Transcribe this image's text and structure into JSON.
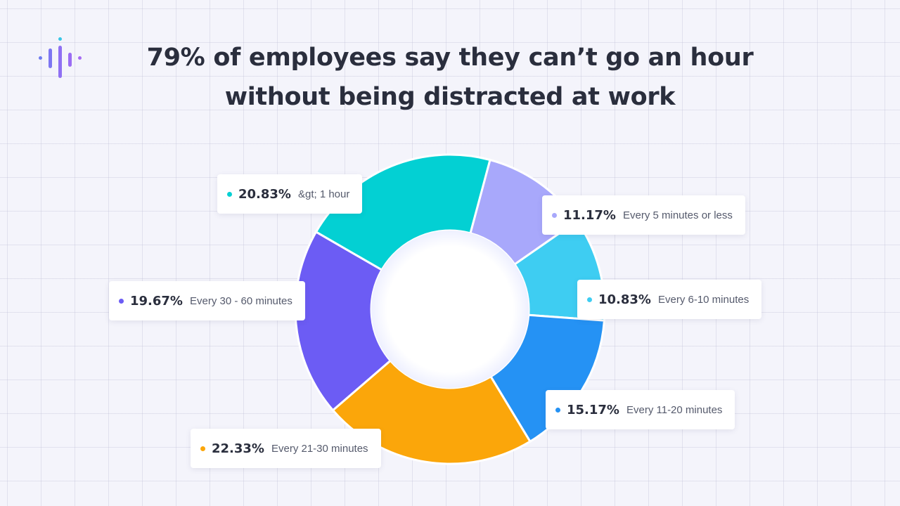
{
  "title": {
    "line1": "79% of employees say they can’t go an hour",
    "line2": "without being distracted at work"
  },
  "logo": {
    "icon": "audio-bars-logo-icon",
    "colors": [
      "#6e7bf0",
      "#a66cf3",
      "#38c6e6"
    ]
  },
  "chart_data": {
    "type": "pie",
    "style": "donut",
    "title": "79% of employees say they can’t go an hour without being distracted at work",
    "slices": [
      {
        "label": "Every 5 minutes or less",
        "value": 11.17,
        "display": "11.17%",
        "color": "#a8a8fb"
      },
      {
        "label": "Every 6-10 minutes",
        "value": 10.83,
        "display": "10.83%",
        "color": "#3ecdf2"
      },
      {
        "label": "Every 11-20 minutes",
        "value": 15.17,
        "display": "15.17%",
        "color": "#2592f4"
      },
      {
        "label": "Every 21-30 minutes",
        "value": 22.33,
        "display": "22.33%",
        "color": "#fba60a"
      },
      {
        "label": "Every 30 - 60 minutes",
        "value": 19.67,
        "display": "19.67%",
        "color": "#6c5cf4"
      },
      {
        "label": "&gt; 1 hour",
        "value": 20.83,
        "display": "20.83%",
        "color": "#03d0d3"
      }
    ],
    "legend": "callout labels around the donut"
  }
}
